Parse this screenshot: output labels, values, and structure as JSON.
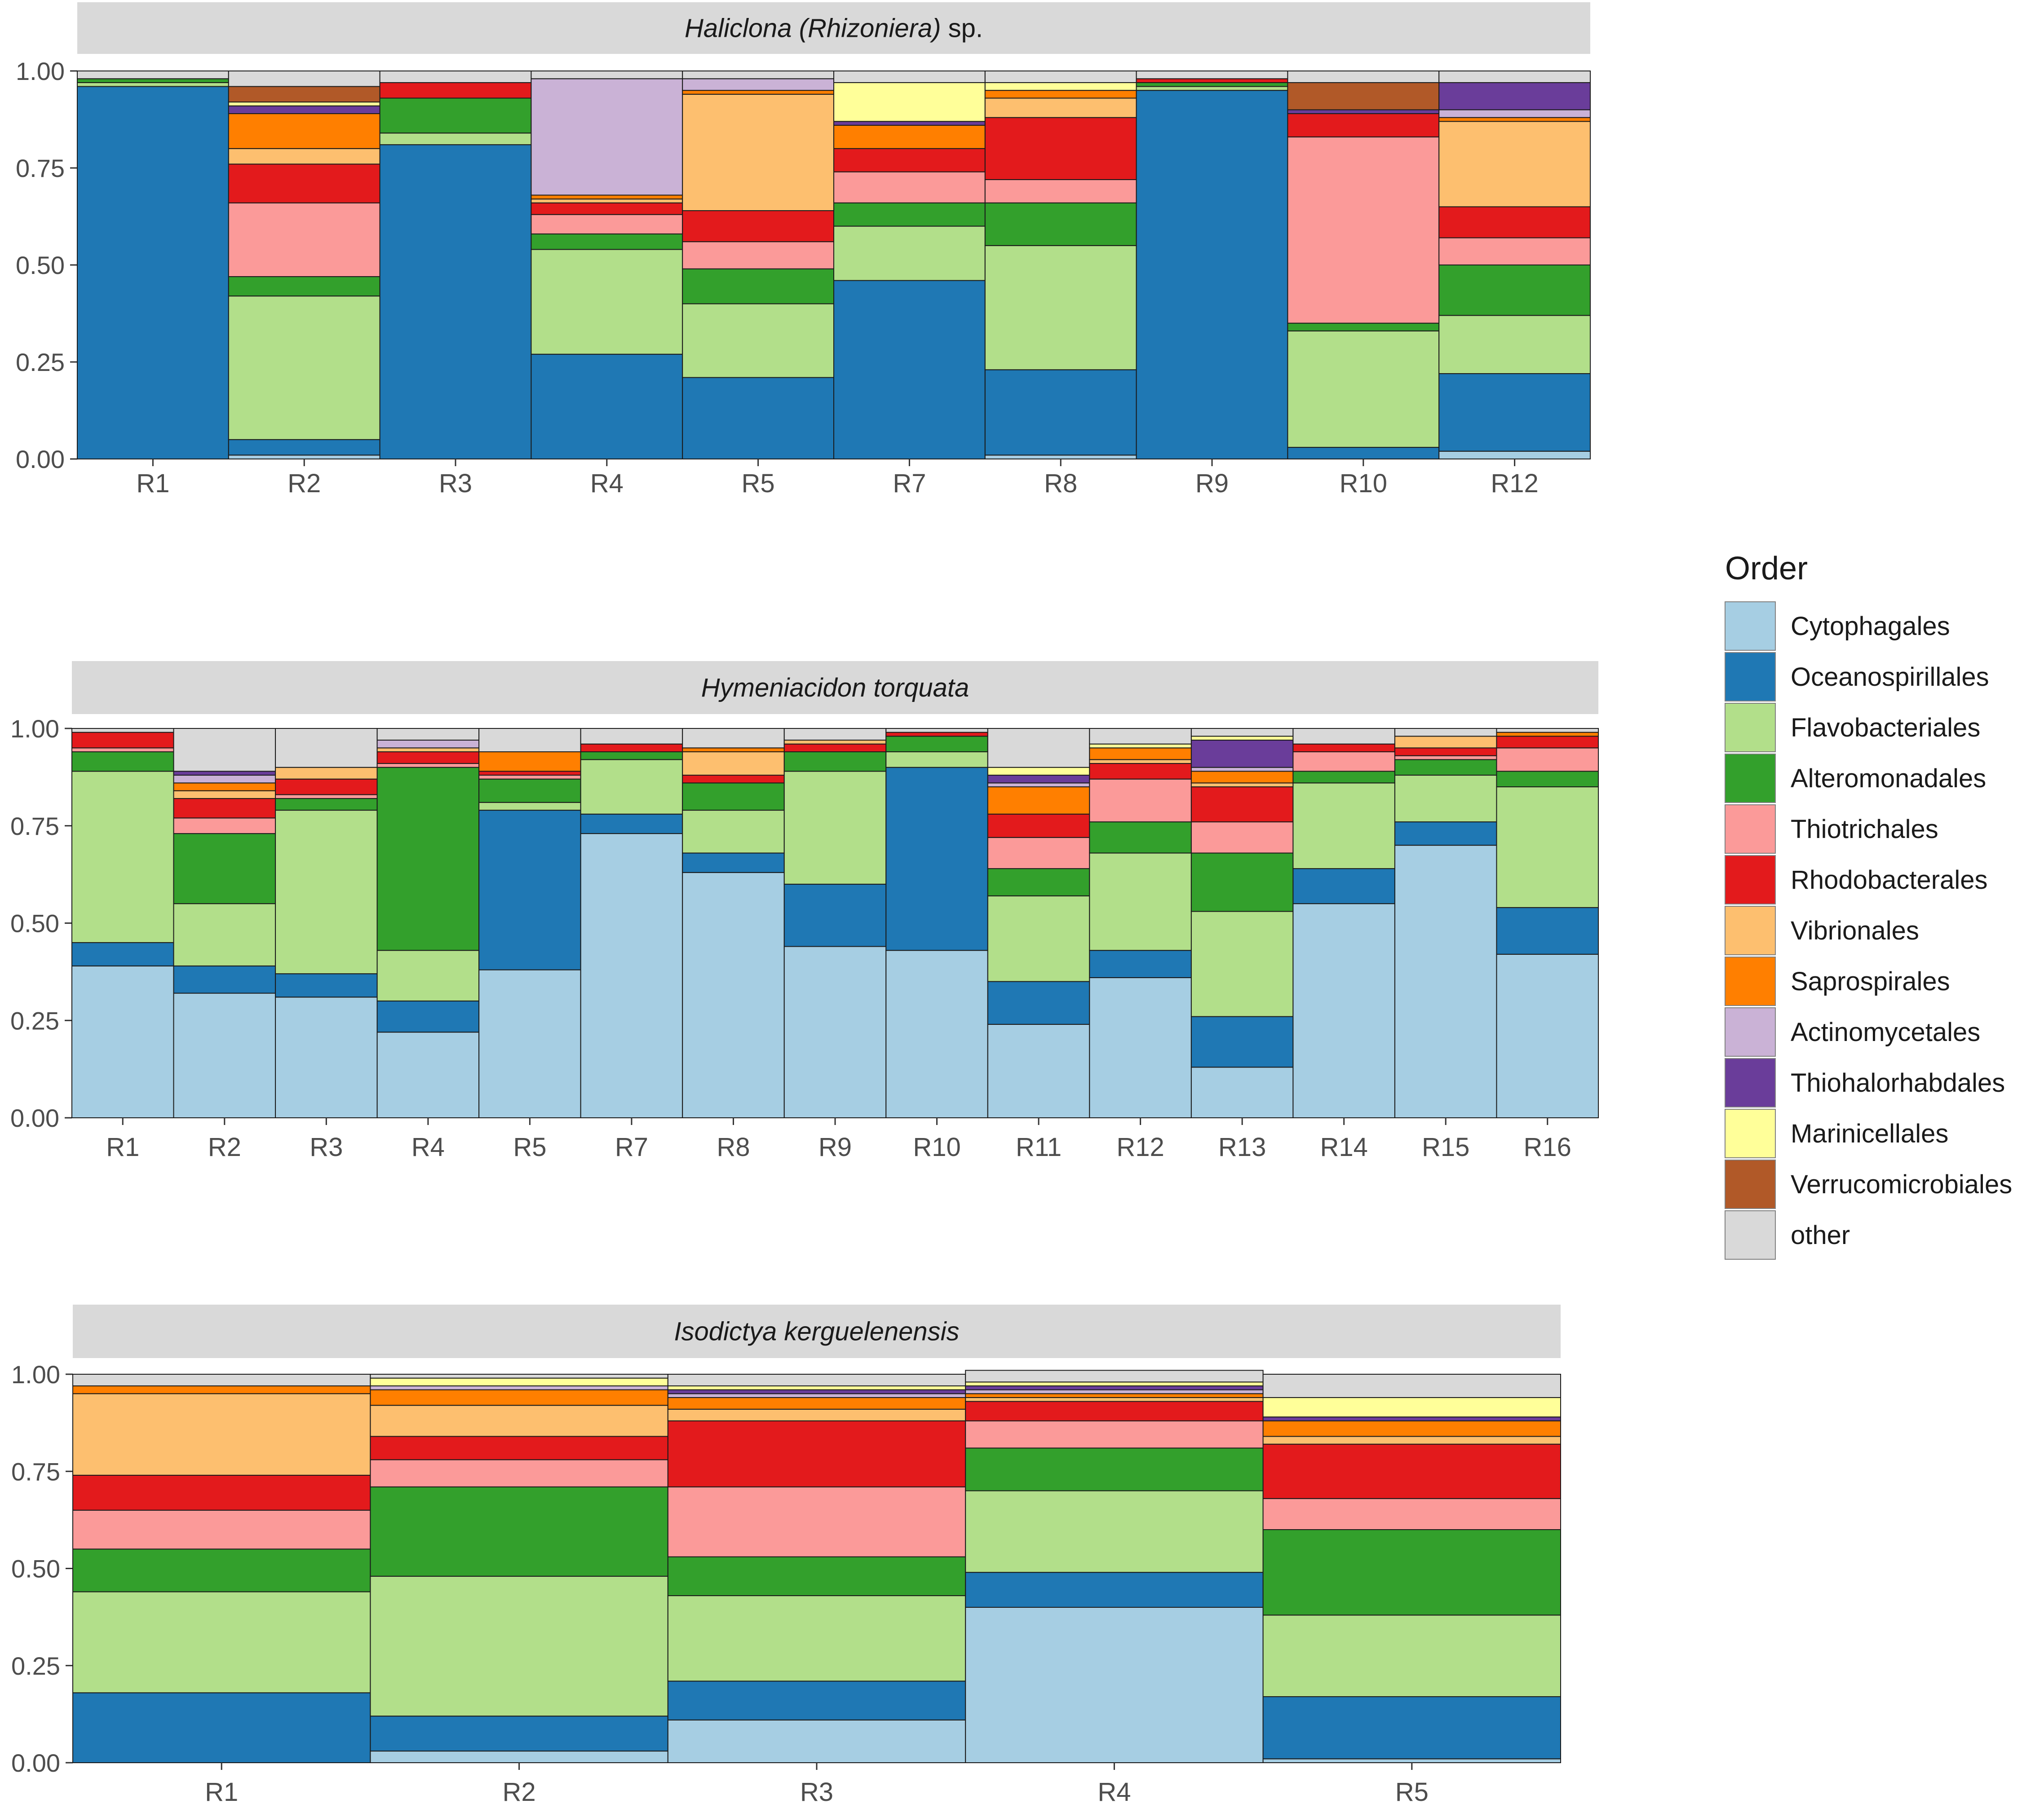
{
  "legend": {
    "title": "Order",
    "entries": [
      {
        "name": "Cytophagales",
        "color": "#a6cee3"
      },
      {
        "name": "Oceanospirillales",
        "color": "#1f78b4"
      },
      {
        "name": "Flavobacteriales",
        "color": "#b2df8a"
      },
      {
        "name": "Alteromonadales",
        "color": "#33a02c"
      },
      {
        "name": "Thiotrichales",
        "color": "#fb9a99"
      },
      {
        "name": "Rhodobacterales",
        "color": "#e31a1c"
      },
      {
        "name": "Vibrionales",
        "color": "#fdbf6f"
      },
      {
        "name": "Saprospirales",
        "color": "#ff7f00"
      },
      {
        "name": "Actinomycetales",
        "color": "#cab2d6"
      },
      {
        "name": "Thiohalorhabdales",
        "color": "#6a3d9a"
      },
      {
        "name": "Marinicellales",
        "color": "#ffff99"
      },
      {
        "name": "Verrucomicrobiales",
        "color": "#b15928"
      },
      {
        "name": "other",
        "color": "#d9d9d9"
      }
    ]
  },
  "chart_data": [
    {
      "type": "bar",
      "stacked": true,
      "title_italic": "Haliclona (Rhizoniera)",
      "title_plain": " sp.",
      "ylim": [
        0,
        1
      ],
      "yticks": [
        "0.00",
        "0.25",
        "0.50",
        "0.75",
        "1.00"
      ],
      "categories": [
        "R1",
        "R2",
        "R3",
        "R4",
        "R5",
        "R7",
        "R8",
        "R9",
        "R10",
        "R12"
      ],
      "series": [
        {
          "name": "Cytophagales",
          "values": [
            0.0,
            0.01,
            0.0,
            0.0,
            0.0,
            0.0,
            0.01,
            0.0,
            0.0,
            0.02
          ]
        },
        {
          "name": "Oceanospirillales",
          "values": [
            0.96,
            0.04,
            0.81,
            0.27,
            0.21,
            0.46,
            0.22,
            0.95,
            0.03,
            0.2
          ]
        },
        {
          "name": "Flavobacteriales",
          "values": [
            0.01,
            0.37,
            0.03,
            0.27,
            0.19,
            0.14,
            0.32,
            0.01,
            0.3,
            0.15
          ]
        },
        {
          "name": "Alteromonadales",
          "values": [
            0.01,
            0.05,
            0.09,
            0.04,
            0.09,
            0.06,
            0.11,
            0.01,
            0.02,
            0.13
          ]
        },
        {
          "name": "Thiotrichales",
          "values": [
            0.0,
            0.19,
            0.0,
            0.05,
            0.07,
            0.08,
            0.06,
            0.0,
            0.48,
            0.07
          ]
        },
        {
          "name": "Rhodobacterales",
          "values": [
            0.0,
            0.1,
            0.04,
            0.03,
            0.08,
            0.06,
            0.16,
            0.01,
            0.06,
            0.08
          ]
        },
        {
          "name": "Vibrionales",
          "values": [
            0.0,
            0.04,
            0.0,
            0.01,
            0.3,
            0.0,
            0.05,
            0.0,
            0.0,
            0.22
          ]
        },
        {
          "name": "Saprospirales",
          "values": [
            0.0,
            0.09,
            0.0,
            0.01,
            0.01,
            0.06,
            0.02,
            0.0,
            0.0,
            0.01
          ]
        },
        {
          "name": "Actinomycetales",
          "values": [
            0.0,
            0.0,
            0.0,
            0.3,
            0.03,
            0.0,
            0.0,
            0.0,
            0.0,
            0.02
          ]
        },
        {
          "name": "Thiohalorhabdales",
          "values": [
            0.0,
            0.02,
            0.0,
            0.0,
            0.0,
            0.01,
            0.0,
            0.0,
            0.01,
            0.07
          ]
        },
        {
          "name": "Marinicellales",
          "values": [
            0.0,
            0.01,
            0.0,
            0.0,
            0.0,
            0.1,
            0.02,
            0.0,
            0.0,
            0.0
          ]
        },
        {
          "name": "Verrucomicrobiales",
          "values": [
            0.0,
            0.04,
            0.0,
            0.0,
            0.0,
            0.0,
            0.0,
            0.0,
            0.07,
            0.0
          ]
        },
        {
          "name": "other",
          "values": [
            0.02,
            0.04,
            0.03,
            0.02,
            0.02,
            0.03,
            0.03,
            0.02,
            0.03,
            0.03
          ]
        }
      ]
    },
    {
      "type": "bar",
      "stacked": true,
      "title_italic": "Hymeniacidon torquata",
      "title_plain": "",
      "ylim": [
        0,
        1
      ],
      "yticks": [
        "0.00",
        "0.25",
        "0.50",
        "0.75",
        "1.00"
      ],
      "categories": [
        "R1",
        "R2",
        "R3",
        "R4",
        "R5",
        "R7",
        "R8",
        "R9",
        "R10",
        "R11",
        "R12",
        "R13",
        "R14",
        "R15",
        "R16"
      ],
      "series": [
        {
          "name": "Cytophagales",
          "values": [
            0.39,
            0.32,
            0.31,
            0.22,
            0.38,
            0.73,
            0.63,
            0.44,
            0.43,
            0.24,
            0.36,
            0.13,
            0.55,
            0.7,
            0.42
          ]
        },
        {
          "name": "Oceanospirillales",
          "values": [
            0.06,
            0.07,
            0.06,
            0.08,
            0.41,
            0.05,
            0.05,
            0.16,
            0.47,
            0.11,
            0.07,
            0.13,
            0.09,
            0.06,
            0.12
          ]
        },
        {
          "name": "Flavobacteriales",
          "values": [
            0.44,
            0.16,
            0.42,
            0.13,
            0.02,
            0.14,
            0.11,
            0.29,
            0.04,
            0.22,
            0.25,
            0.27,
            0.22,
            0.12,
            0.31
          ]
        },
        {
          "name": "Alteromonadales",
          "values": [
            0.05,
            0.18,
            0.03,
            0.47,
            0.06,
            0.02,
            0.07,
            0.05,
            0.04,
            0.07,
            0.08,
            0.15,
            0.03,
            0.04,
            0.04
          ]
        },
        {
          "name": "Thiotrichales",
          "values": [
            0.01,
            0.04,
            0.01,
            0.01,
            0.01,
            0.0,
            0.0,
            0.0,
            0.0,
            0.08,
            0.11,
            0.08,
            0.05,
            0.01,
            0.06
          ]
        },
        {
          "name": "Rhodobacterales",
          "values": [
            0.04,
            0.05,
            0.04,
            0.03,
            0.01,
            0.02,
            0.02,
            0.02,
            0.01,
            0.06,
            0.04,
            0.09,
            0.02,
            0.02,
            0.03
          ]
        },
        {
          "name": "Vibrionales",
          "values": [
            0.0,
            0.02,
            0.03,
            0.01,
            0.0,
            0.0,
            0.06,
            0.01,
            0.0,
            0.0,
            0.01,
            0.01,
            0.0,
            0.03,
            0.0
          ]
        },
        {
          "name": "Saprospirales",
          "values": [
            0.0,
            0.02,
            0.0,
            0.0,
            0.05,
            0.0,
            0.01,
            0.0,
            0.0,
            0.07,
            0.03,
            0.03,
            0.0,
            0.0,
            0.01
          ]
        },
        {
          "name": "Actinomycetales",
          "values": [
            0.0,
            0.02,
            0.0,
            0.02,
            0.0,
            0.0,
            0.0,
            0.0,
            0.0,
            0.01,
            0.0,
            0.01,
            0.0,
            0.0,
            0.0
          ]
        },
        {
          "name": "Thiohalorhabdales",
          "values": [
            0.0,
            0.01,
            0.0,
            0.0,
            0.0,
            0.0,
            0.0,
            0.0,
            0.0,
            0.02,
            0.0,
            0.07,
            0.0,
            0.0,
            0.0
          ]
        },
        {
          "name": "Marinicellales",
          "values": [
            0.0,
            0.0,
            0.0,
            0.0,
            0.0,
            0.0,
            0.0,
            0.0,
            0.0,
            0.02,
            0.01,
            0.01,
            0.0,
            0.0,
            0.0
          ]
        },
        {
          "name": "Verrucomicrobiales",
          "values": [
            0.0,
            0.0,
            0.0,
            0.0,
            0.0,
            0.0,
            0.0,
            0.0,
            0.0,
            0.0,
            0.0,
            0.0,
            0.0,
            0.0,
            0.0
          ]
        },
        {
          "name": "other",
          "values": [
            0.01,
            0.11,
            0.1,
            0.03,
            0.06,
            0.04,
            0.05,
            0.03,
            0.01,
            0.1,
            0.04,
            0.02,
            0.04,
            0.02,
            0.01
          ]
        }
      ]
    },
    {
      "type": "bar",
      "stacked": true,
      "title_italic": "Isodictya kerguelenensis",
      "title_plain": "",
      "ylim": [
        0,
        1
      ],
      "yticks": [
        "0.00",
        "0.25",
        "0.50",
        "0.75",
        "1.00"
      ],
      "categories": [
        "R1",
        "R2",
        "R3",
        "R4",
        "R5"
      ],
      "series": [
        {
          "name": "Cytophagales",
          "values": [
            0.0,
            0.03,
            0.11,
            0.4,
            0.01
          ]
        },
        {
          "name": "Oceanospirillales",
          "values": [
            0.18,
            0.09,
            0.1,
            0.09,
            0.16
          ]
        },
        {
          "name": "Flavobacteriales",
          "values": [
            0.26,
            0.36,
            0.22,
            0.21,
            0.21
          ]
        },
        {
          "name": "Alteromonadales",
          "values": [
            0.11,
            0.23,
            0.1,
            0.11,
            0.22
          ]
        },
        {
          "name": "Thiotrichales",
          "values": [
            0.1,
            0.07,
            0.18,
            0.07,
            0.08
          ]
        },
        {
          "name": "Rhodobacterales",
          "values": [
            0.09,
            0.06,
            0.17,
            0.05,
            0.14
          ]
        },
        {
          "name": "Vibrionales",
          "values": [
            0.21,
            0.08,
            0.03,
            0.01,
            0.02
          ]
        },
        {
          "name": "Saprospirales",
          "values": [
            0.02,
            0.04,
            0.03,
            0.01,
            0.04
          ]
        },
        {
          "name": "Actinomycetales",
          "values": [
            0.0,
            0.01,
            0.01,
            0.01,
            0.0
          ]
        },
        {
          "name": "Thiohalorhabdales",
          "values": [
            0.0,
            0.0,
            0.01,
            0.01,
            0.01
          ]
        },
        {
          "name": "Marinicellales",
          "values": [
            0.0,
            0.02,
            0.01,
            0.01,
            0.05
          ]
        },
        {
          "name": "Verrucomicrobiales",
          "values": [
            0.0,
            0.0,
            0.0,
            0.0,
            0.0
          ]
        },
        {
          "name": "other",
          "values": [
            0.03,
            0.01,
            0.03,
            0.03,
            0.06
          ]
        }
      ]
    }
  ]
}
